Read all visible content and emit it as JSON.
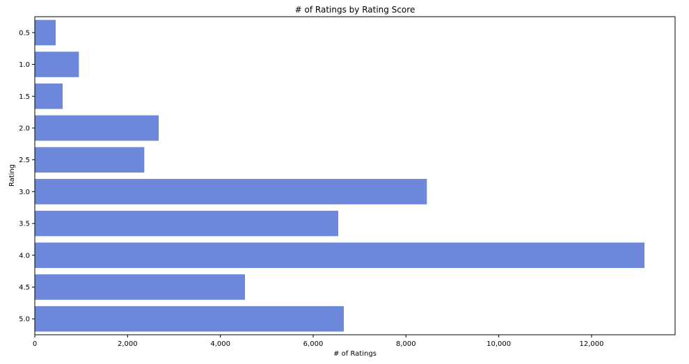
{
  "chart_data": {
    "type": "bar",
    "orientation": "horizontal",
    "title": "# of Ratings by Rating Score",
    "xlabel": "# of Ratings",
    "ylabel": "Rating",
    "categories": [
      "0.5",
      "1.0",
      "1.5",
      "2.0",
      "2.5",
      "3.0",
      "3.5",
      "4.0",
      "4.5",
      "5.0"
    ],
    "values": [
      450,
      950,
      600,
      2670,
      2360,
      8450,
      6540,
      13140,
      4530,
      6660
    ],
    "xlim": [
      0,
      13800
    ],
    "xticks": [
      0,
      2000,
      4000,
      6000,
      8000,
      10000,
      12000
    ],
    "xtick_labels": [
      "0",
      "2,000",
      "4,000",
      "6,000",
      "8,000",
      "10,000",
      "12,000"
    ],
    "grid": false,
    "bar_color": "#6d88db"
  }
}
